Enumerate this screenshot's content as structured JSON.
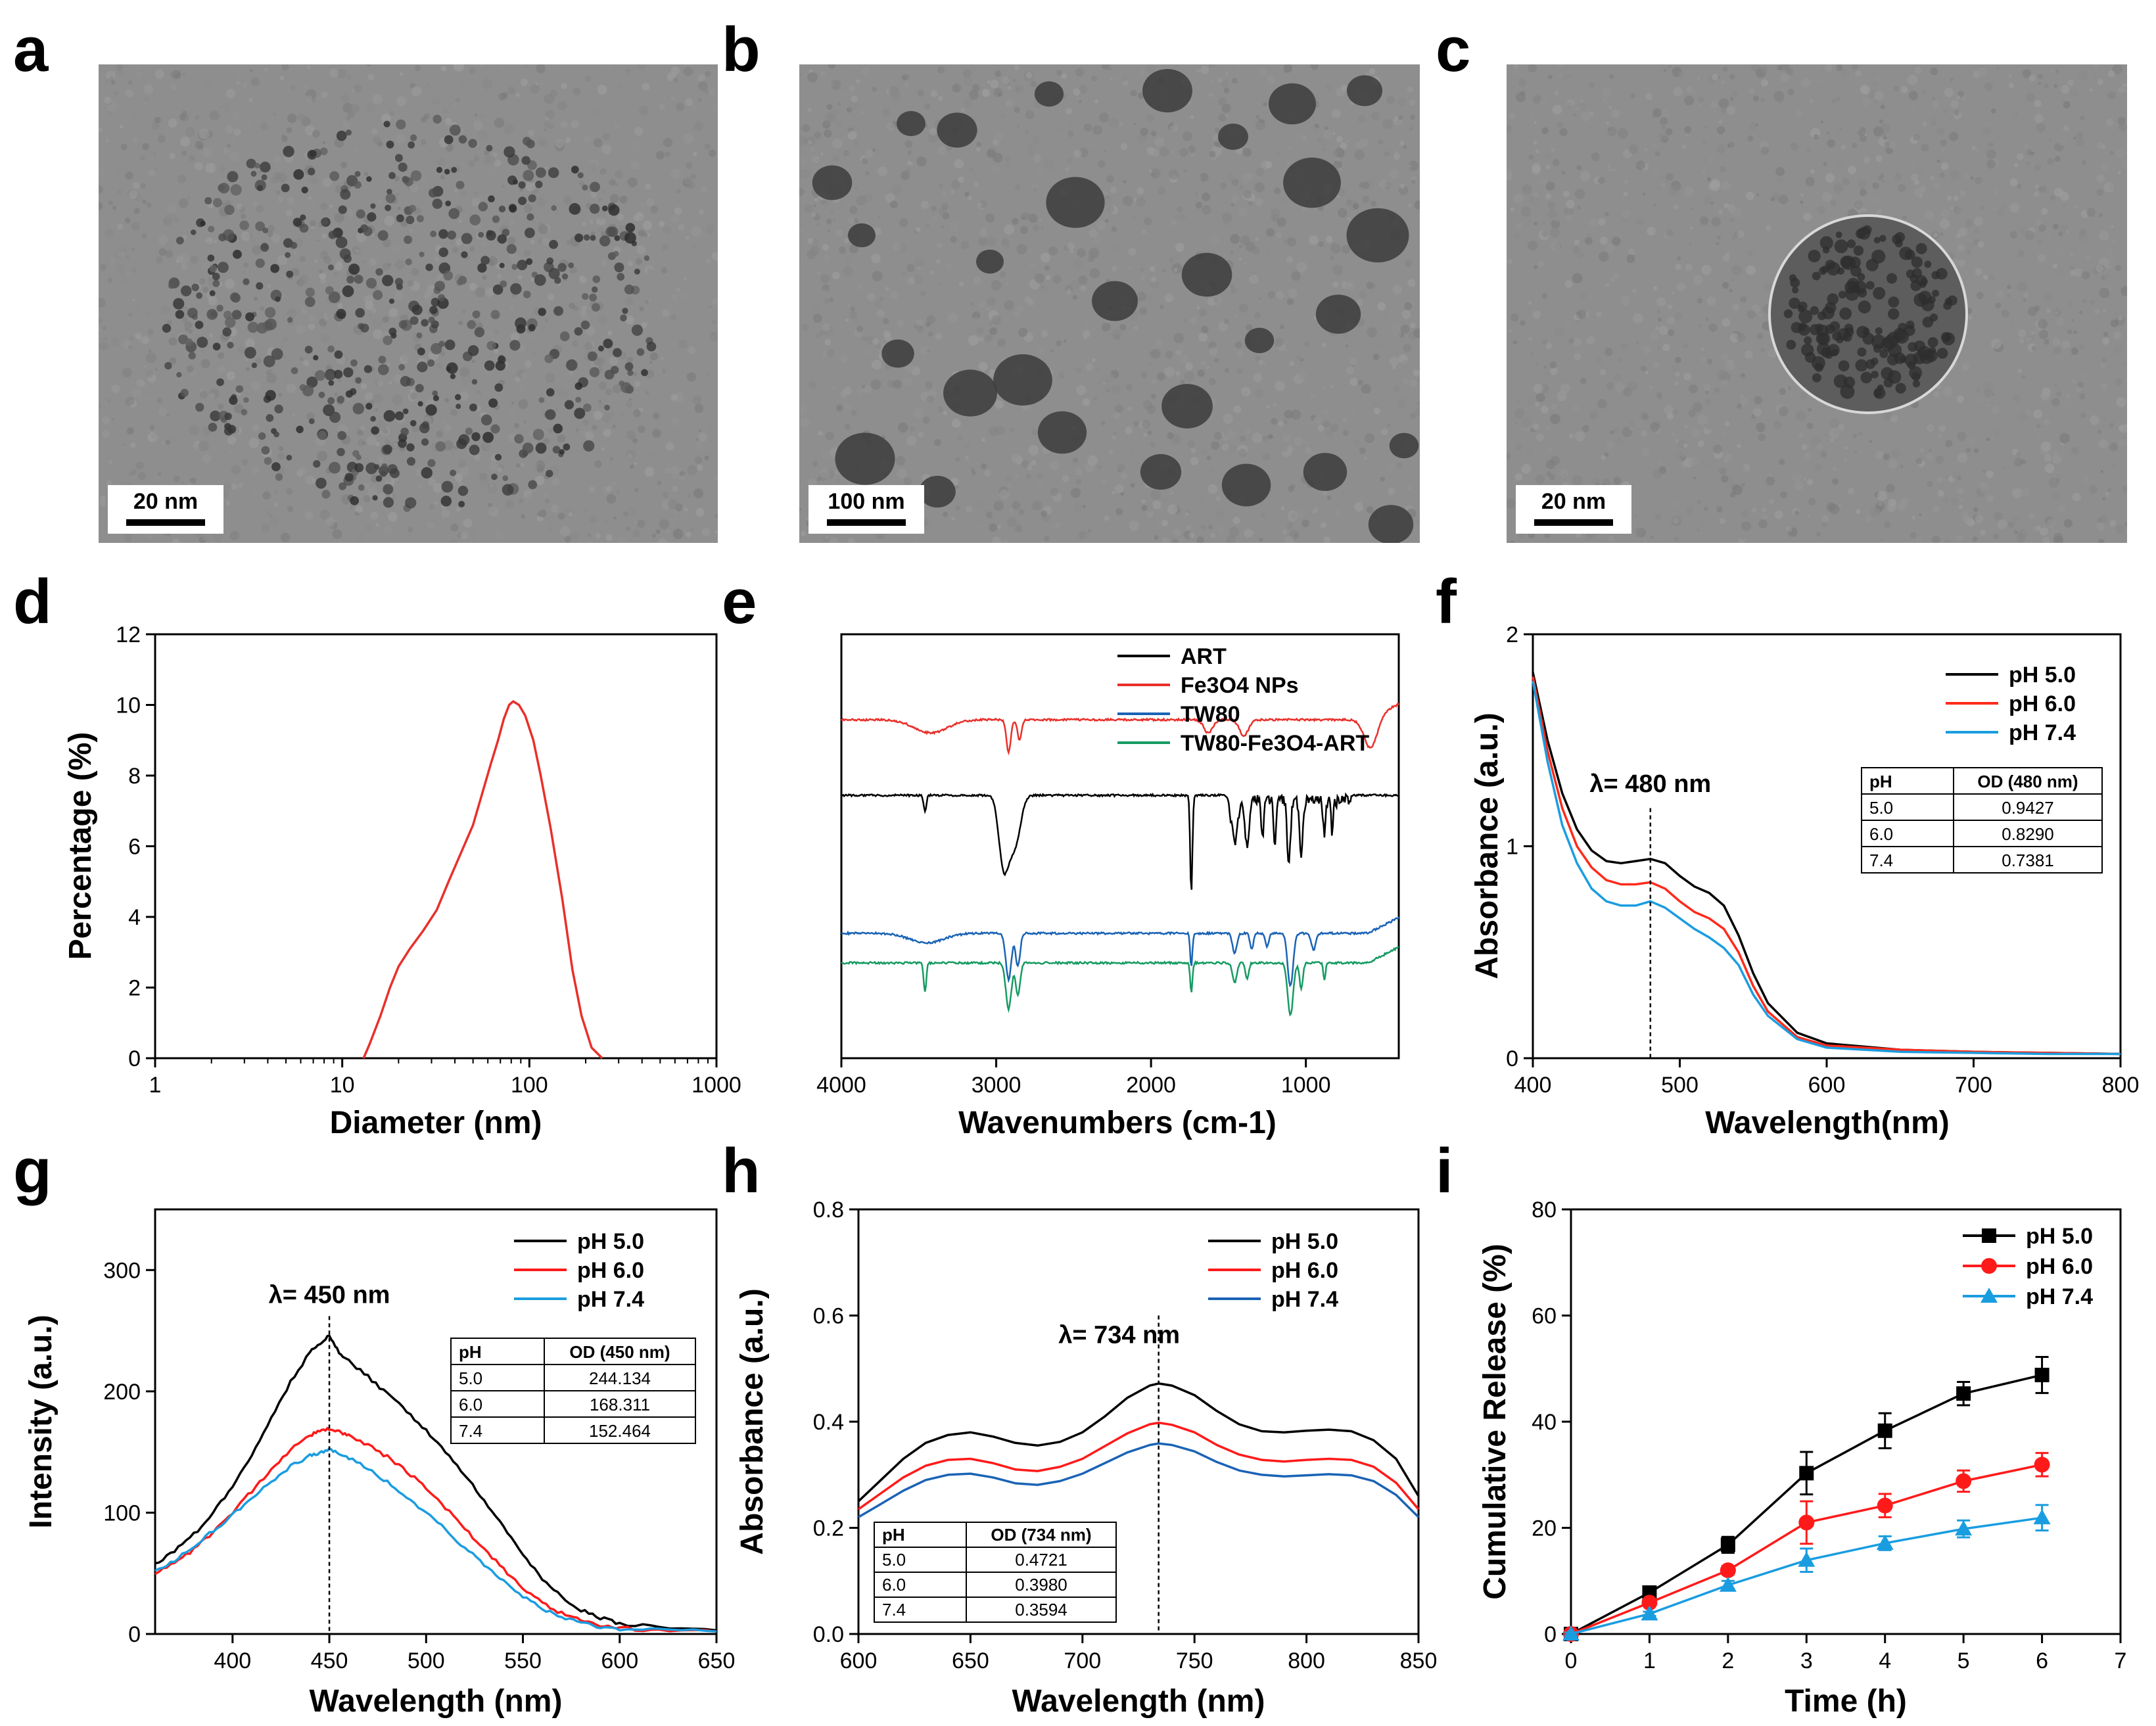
{
  "panels": {
    "a": {
      "letter": "a",
      "scale": "20 nm"
    },
    "b": {
      "letter": "b",
      "scale": "100 nm"
    },
    "c": {
      "letter": "c",
      "scale": "20 nm"
    },
    "d": {
      "letter": "d"
    },
    "e": {
      "letter": "e"
    },
    "f": {
      "letter": "f"
    },
    "g": {
      "letter": "g"
    },
    "h": {
      "letter": "h"
    },
    "i": {
      "letter": "i"
    }
  },
  "colors": {
    "black": "#000000",
    "red": "#e8302a",
    "blue": "#1a63b5",
    "green": "#169b62",
    "cyan": "#1a9de0",
    "redline": "#ff2a1a"
  },
  "chart_data": [
    {
      "id": "d",
      "type": "line",
      "xlabel": "Diameter (nm)",
      "ylabel": "Percentage (%)",
      "xscale": "log",
      "xlim": [
        1,
        1000
      ],
      "ylim": [
        0,
        12
      ],
      "xticks": [
        1,
        10,
        100,
        1000
      ],
      "xtick_labels": [
        "1",
        "10",
        "100",
        "1000"
      ],
      "yticks": [
        0,
        2,
        4,
        6,
        8,
        10,
        12
      ],
      "ytick_labels": [
        "0",
        "2",
        "4",
        "6",
        "8",
        "10",
        "12"
      ],
      "series": [
        {
          "color": "#e8302a",
          "x": [
            13,
            14,
            16,
            18,
            20,
            23,
            27,
            32,
            37,
            43,
            50,
            56,
            62,
            68,
            73,
            78,
            82,
            88,
            95,
            105,
            115,
            130,
            150,
            170,
            190,
            215,
            245
          ],
          "y": [
            0,
            0.4,
            1.2,
            2.0,
            2.6,
            3.1,
            3.6,
            4.2,
            5.0,
            5.8,
            6.6,
            7.5,
            8.3,
            9.0,
            9.6,
            10.0,
            10.1,
            10.0,
            9.7,
            9.0,
            8.0,
            6.5,
            4.5,
            2.5,
            1.2,
            0.3,
            0
          ]
        }
      ]
    },
    {
      "id": "e",
      "type": "line",
      "xlabel": "Wavenumbers (cm-1)",
      "ylabel": "",
      "xlim": [
        4000,
        400
      ],
      "xreversed": true,
      "xticks": [
        4000,
        3000,
        2000,
        1000
      ],
      "xtick_labels": [
        "4000",
        "3000",
        "2000",
        "1000"
      ],
      "legend": [
        "ART",
        "Fe3O4 NPs",
        "TW80",
        "TW80-Fe3O4-ART"
      ],
      "series": [
        {
          "name": "ART",
          "color": "#000000",
          "base": 4.0
        },
        {
          "name": "Fe3O4 NPs",
          "color": "#e8302a",
          "base": 5.15
        },
        {
          "name": "TW80",
          "color": "#1a63b5",
          "base": 1.9
        },
        {
          "name": "TW80-Fe3O4-ART",
          "color": "#169b62",
          "base": 1.45
        }
      ]
    },
    {
      "id": "f",
      "type": "line",
      "xlabel": "Wavelength(nm)",
      "ylabel": "Absorbance (a.u.)",
      "xlim": [
        400,
        800
      ],
      "ylim": [
        0,
        2
      ],
      "xticks": [
        400,
        500,
        600,
        700,
        800
      ],
      "xtick_labels": [
        "400",
        "500",
        "600",
        "700",
        "800"
      ],
      "yticks": [
        0,
        1,
        2
      ],
      "ytick_labels": [
        "0",
        "1",
        "2"
      ],
      "annotation": "λ= 480 nm",
      "marker_x": 480,
      "legend": [
        "pH 5.0",
        "pH 6.0",
        "pH 7.4"
      ],
      "series": [
        {
          "name": "pH 5.0",
          "color": "#000000",
          "x": [
            400,
            410,
            420,
            430,
            440,
            450,
            460,
            470,
            480,
            490,
            500,
            510,
            520,
            530,
            540,
            550,
            560,
            580,
            600,
            650,
            700,
            750,
            800
          ],
          "y": [
            1.82,
            1.5,
            1.25,
            1.08,
            0.98,
            0.93,
            0.92,
            0.93,
            0.94,
            0.92,
            0.86,
            0.81,
            0.78,
            0.72,
            0.58,
            0.4,
            0.26,
            0.12,
            0.07,
            0.04,
            0.03,
            0.025,
            0.02
          ]
        },
        {
          "name": "pH 6.0",
          "color": "#ff2a1a",
          "x": [
            400,
            410,
            420,
            430,
            440,
            450,
            460,
            470,
            480,
            490,
            500,
            510,
            520,
            530,
            540,
            550,
            560,
            580,
            600,
            650,
            700,
            750,
            800
          ],
          "y": [
            1.8,
            1.45,
            1.18,
            1.0,
            0.9,
            0.84,
            0.82,
            0.82,
            0.83,
            0.8,
            0.74,
            0.69,
            0.66,
            0.61,
            0.5,
            0.34,
            0.22,
            0.1,
            0.06,
            0.04,
            0.03,
            0.025,
            0.02
          ]
        },
        {
          "name": "pH 7.4",
          "color": "#1a9de0",
          "x": [
            400,
            410,
            420,
            430,
            440,
            450,
            460,
            470,
            480,
            490,
            500,
            510,
            520,
            530,
            540,
            550,
            560,
            580,
            600,
            650,
            700,
            750,
            800
          ],
          "y": [
            1.78,
            1.4,
            1.1,
            0.92,
            0.8,
            0.74,
            0.72,
            0.72,
            0.74,
            0.71,
            0.66,
            0.61,
            0.57,
            0.52,
            0.44,
            0.3,
            0.2,
            0.09,
            0.05,
            0.03,
            0.025,
            0.02,
            0.02
          ]
        }
      ],
      "table": {
        "headers": [
          "pH",
          "OD (480 nm)"
        ],
        "rows": [
          [
            "5.0",
            "0.9427"
          ],
          [
            "6.0",
            "0.8290"
          ],
          [
            "7.4",
            "0.7381"
          ]
        ]
      }
    },
    {
      "id": "g",
      "type": "line",
      "xlabel": "Wavelength (nm)",
      "ylabel": "Intensity (a.u.)",
      "xlim": [
        360,
        650
      ],
      "ylim": [
        0,
        350
      ],
      "xticks": [
        400,
        450,
        500,
        550,
        600,
        650
      ],
      "xtick_labels": [
        "400",
        "450",
        "500",
        "550",
        "600",
        "650"
      ],
      "yticks": [
        0,
        100,
        200,
        300
      ],
      "ytick_labels": [
        "0",
        "100",
        "200",
        "300"
      ],
      "annotation": "λ= 450 nm",
      "marker_x": 450,
      "legend": [
        "pH 5.0",
        "pH 6.0",
        "pH 7.4"
      ],
      "series": [
        {
          "name": "pH 5.0",
          "color": "#000000",
          "x": [
            360,
            370,
            380,
            390,
            400,
            410,
            420,
            430,
            440,
            445,
            450,
            455,
            460,
            470,
            480,
            490,
            500,
            510,
            520,
            530,
            540,
            550,
            560,
            570,
            580,
            590,
            600,
            620,
            650
          ],
          "y": [
            58,
            68,
            82,
            100,
            122,
            148,
            178,
            208,
            232,
            240,
            246,
            232,
            225,
            212,
            198,
            184,
            168,
            150,
            131,
            110,
            88,
            66,
            46,
            31,
            20,
            13,
            9,
            5,
            3
          ]
        },
        {
          "name": "pH 6.0",
          "color": "#ff1a1a",
          "x": [
            360,
            370,
            380,
            390,
            400,
            410,
            420,
            430,
            440,
            445,
            450,
            455,
            460,
            470,
            480,
            490,
            500,
            510,
            520,
            530,
            540,
            550,
            560,
            570,
            580,
            590,
            600,
            620,
            650
          ],
          "y": [
            50,
            58,
            70,
            84,
            100,
            118,
            136,
            152,
            164,
            167,
            169,
            167,
            164,
            156,
            146,
            134,
            120,
            104,
            87,
            70,
            53,
            38,
            26,
            17,
            11,
            7,
            5,
            3,
            2
          ]
        },
        {
          "name": "pH 7.4",
          "color": "#1a9de0",
          "x": [
            360,
            370,
            380,
            390,
            400,
            410,
            420,
            430,
            440,
            445,
            450,
            455,
            460,
            470,
            480,
            490,
            500,
            510,
            520,
            530,
            540,
            550,
            560,
            570,
            580,
            590,
            600,
            620,
            650
          ],
          "y": [
            52,
            60,
            72,
            85,
            98,
            112,
            126,
            138,
            147,
            150,
            152,
            149,
            145,
            136,
            125,
            113,
            100,
            86,
            71,
            57,
            43,
            31,
            21,
            14,
            9,
            6,
            4,
            3,
            2
          ]
        }
      ],
      "table": {
        "headers": [
          "pH",
          "OD (450 nm)"
        ],
        "rows": [
          [
            "5.0",
            "244.134"
          ],
          [
            "6.0",
            "168.311"
          ],
          [
            "7.4",
            "152.464"
          ]
        ]
      }
    },
    {
      "id": "h",
      "type": "line",
      "xlabel": "Wavelength (nm)",
      "ylabel": "Absorbance (a.u.)",
      "xlim": [
        600,
        850
      ],
      "ylim": [
        0,
        0.8
      ],
      "xticks": [
        600,
        650,
        700,
        750,
        800,
        850
      ],
      "xtick_labels": [
        "600",
        "650",
        "700",
        "750",
        "800",
        "850"
      ],
      "yticks": [
        0,
        0.2,
        0.4,
        0.6,
        0.8
      ],
      "ytick_labels": [
        "0.0",
        "0.2",
        "0.4",
        "0.6",
        "0.8"
      ],
      "annotation": "λ= 734 nm",
      "marker_x": 734,
      "legend": [
        "pH 5.0",
        "pH 6.0",
        "pH 7.4"
      ],
      "series": [
        {
          "name": "pH 5.0",
          "color": "#000000",
          "x": [
            600,
            610,
            620,
            630,
            640,
            650,
            660,
            670,
            680,
            690,
            700,
            710,
            720,
            730,
            734,
            740,
            750,
            760,
            770,
            780,
            790,
            800,
            810,
            820,
            830,
            840,
            850
          ],
          "y": [
            0.25,
            0.29,
            0.33,
            0.36,
            0.375,
            0.38,
            0.372,
            0.36,
            0.355,
            0.362,
            0.38,
            0.41,
            0.445,
            0.468,
            0.472,
            0.468,
            0.45,
            0.42,
            0.395,
            0.382,
            0.38,
            0.383,
            0.385,
            0.382,
            0.365,
            0.33,
            0.26
          ]
        },
        {
          "name": "pH 6.0",
          "color": "#ff1a1a",
          "x": [
            600,
            610,
            620,
            630,
            640,
            650,
            660,
            670,
            680,
            690,
            700,
            710,
            720,
            730,
            734,
            740,
            750,
            760,
            770,
            780,
            790,
            800,
            810,
            820,
            830,
            840,
            850
          ],
          "y": [
            0.235,
            0.265,
            0.295,
            0.317,
            0.328,
            0.33,
            0.322,
            0.31,
            0.307,
            0.315,
            0.33,
            0.354,
            0.378,
            0.395,
            0.398,
            0.394,
            0.38,
            0.356,
            0.338,
            0.328,
            0.325,
            0.328,
            0.33,
            0.328,
            0.315,
            0.285,
            0.235
          ]
        },
        {
          "name": "pH 7.4",
          "color": "#1a63b5",
          "x": [
            600,
            610,
            620,
            630,
            640,
            650,
            660,
            670,
            680,
            690,
            700,
            710,
            720,
            730,
            734,
            740,
            750,
            760,
            770,
            780,
            790,
            800,
            810,
            820,
            830,
            840,
            850
          ],
          "y": [
            0.22,
            0.245,
            0.27,
            0.29,
            0.3,
            0.302,
            0.295,
            0.284,
            0.281,
            0.288,
            0.302,
            0.322,
            0.342,
            0.356,
            0.359,
            0.356,
            0.344,
            0.324,
            0.308,
            0.3,
            0.297,
            0.299,
            0.301,
            0.299,
            0.288,
            0.262,
            0.22
          ]
        }
      ],
      "table": {
        "headers": [
          "pH",
          "OD (734 nm)"
        ],
        "rows": [
          [
            "5.0",
            "0.4721"
          ],
          [
            "6.0",
            "0.3980"
          ],
          [
            "7.4",
            "0.3594"
          ]
        ]
      }
    },
    {
      "id": "i",
      "type": "line",
      "xlabel": "Time (h)",
      "ylabel": "Cumulative Release (%)",
      "xlim": [
        0,
        7
      ],
      "ylim": [
        0,
        80
      ],
      "xticks": [
        0,
        1,
        2,
        3,
        4,
        5,
        6,
        7
      ],
      "xtick_labels": [
        "0",
        "1",
        "2",
        "3",
        "4",
        "5",
        "6",
        "7"
      ],
      "yticks": [
        0,
        20,
        40,
        60,
        80
      ],
      "ytick_labels": [
        "0",
        "20",
        "40",
        "60",
        "80"
      ],
      "legend": [
        "pH 5.0",
        "pH 6.0",
        "pH 7.4"
      ],
      "series": [
        {
          "name": "pH 5.0",
          "color": "#000000",
          "marker": "square",
          "x": [
            0,
            1,
            2,
            3,
            4,
            5,
            6
          ],
          "y": [
            0,
            7.8,
            16.8,
            30.3,
            38.3,
            45.3,
            48.8
          ],
          "err": [
            0.5,
            0.8,
            1.5,
            4.0,
            3.3,
            2.2,
            3.4
          ]
        },
        {
          "name": "pH 6.0",
          "color": "#ff1a1a",
          "marker": "circle",
          "x": [
            0,
            1,
            2,
            3,
            4,
            5,
            6
          ],
          "y": [
            0,
            5.9,
            12.0,
            21.0,
            24.2,
            28.8,
            31.9
          ],
          "err": [
            0.4,
            0.6,
            0.8,
            4.0,
            2.2,
            2.0,
            2.2
          ]
        },
        {
          "name": "pH 7.4",
          "color": "#1a9de0",
          "marker": "triangle",
          "x": [
            0,
            1,
            2,
            3,
            4,
            5,
            6
          ],
          "y": [
            0,
            3.8,
            9.2,
            13.9,
            17.1,
            19.8,
            21.9
          ],
          "err": [
            0.3,
            0.4,
            0.8,
            2.2,
            1.3,
            1.6,
            2.4
          ]
        }
      ]
    }
  ]
}
